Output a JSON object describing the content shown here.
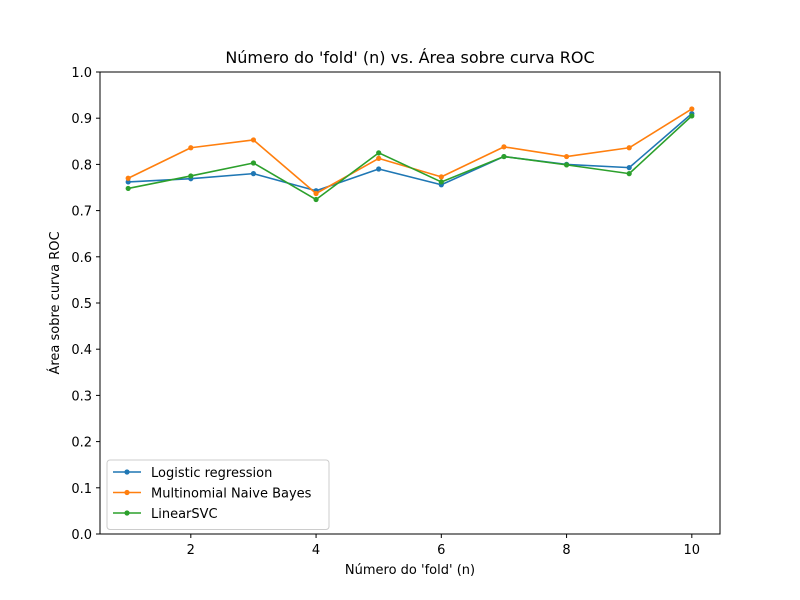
{
  "chart_data": {
    "type": "line",
    "title": "Número do 'fold' (n) vs. Área sobre curva ROC",
    "xlabel": "Número do 'fold' (n)",
    "ylabel": "Área sobre curva ROC",
    "xlim": [
      0.55,
      10.45
    ],
    "ylim": [
      0.0,
      1.0
    ],
    "xticks": [
      2,
      4,
      6,
      8,
      10
    ],
    "yticks": [
      0.0,
      0.1,
      0.2,
      0.3,
      0.4,
      0.5,
      0.6,
      0.7,
      0.8,
      0.9,
      1.0
    ],
    "x": [
      1,
      2,
      3,
      4,
      5,
      6,
      7,
      8,
      9,
      10
    ],
    "grid": false,
    "legend_position": "lower-left",
    "series": [
      {
        "name": "Logistic regression",
        "color": "#1f77b4",
        "values": [
          0.762,
          0.769,
          0.78,
          0.743,
          0.79,
          0.756,
          0.817,
          0.8,
          0.793,
          0.91
        ]
      },
      {
        "name": "Multinomial Naive Bayes",
        "color": "#ff7f0e",
        "values": [
          0.77,
          0.836,
          0.853,
          0.737,
          0.813,
          0.773,
          0.838,
          0.817,
          0.836,
          0.92
        ]
      },
      {
        "name": "LinearSVC",
        "color": "#2ca02c",
        "values": [
          0.748,
          0.775,
          0.803,
          0.724,
          0.825,
          0.762,
          0.817,
          0.799,
          0.78,
          0.905
        ]
      }
    ]
  }
}
